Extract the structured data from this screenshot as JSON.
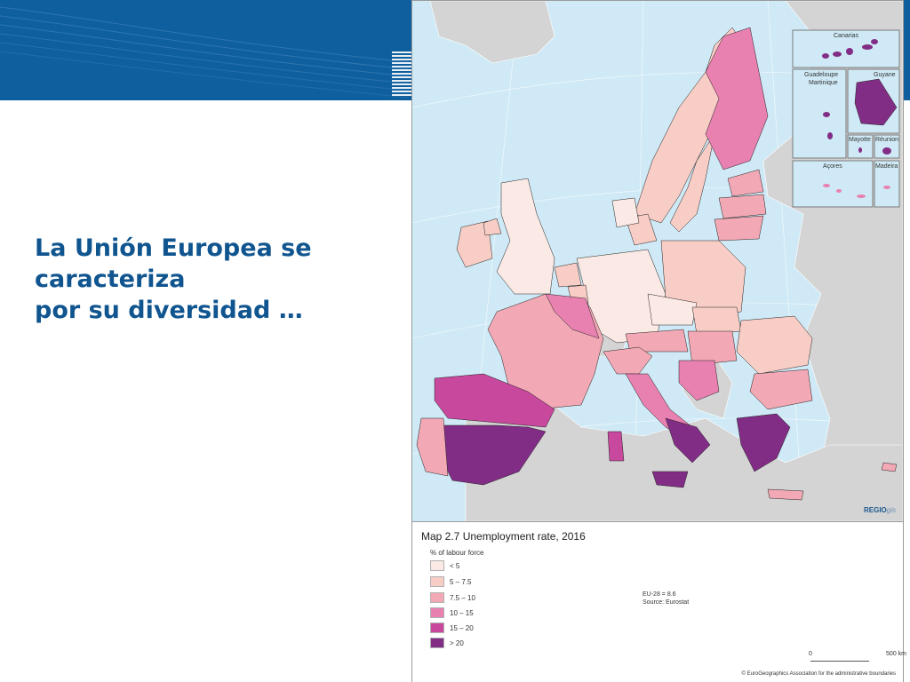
{
  "slide": {
    "title_lines": [
      "La Unión Europea se",
      "caracteriza",
      "por su diversidad …"
    ]
  },
  "map": {
    "title_prefix": "Map 2.7",
    "title": "Unemployment rate, 2016",
    "legend_title": "% of labour force",
    "legend": [
      {
        "label": "< 5",
        "color": "#fbe9e5"
      },
      {
        "label": "5 – 7.5",
        "color": "#f8cdc6"
      },
      {
        "label": "7.5 – 10",
        "color": "#f2a9b5"
      },
      {
        "label": "10 – 15",
        "color": "#e880b0"
      },
      {
        "label": "15 – 20",
        "color": "#c8489e"
      },
      {
        "label": "> 20",
        "color": "#822d85"
      }
    ],
    "eu_average": "EU-28 = 8.6",
    "source": "Source: Eurostat",
    "scale": {
      "min": "0",
      "max": "500 km"
    },
    "copyright": "© EuroGeographics Association for the administrative boundaries",
    "brand": "REGIO",
    "brand_suffix": "gis",
    "insets": {
      "canarias": "Canarias",
      "guadeloupe": "Guadeloupe",
      "martinique": "Martinique",
      "guyane": "Guyane",
      "mayotte": "Mayotte",
      "reunion": "Réunion",
      "acores": "Açores",
      "madeira": "Madeira"
    }
  },
  "colors": {
    "header": "#0f5f9e",
    "title": "#10558f",
    "sea": "#cfeaf6",
    "non_eu_land": "#d4d4d4"
  }
}
